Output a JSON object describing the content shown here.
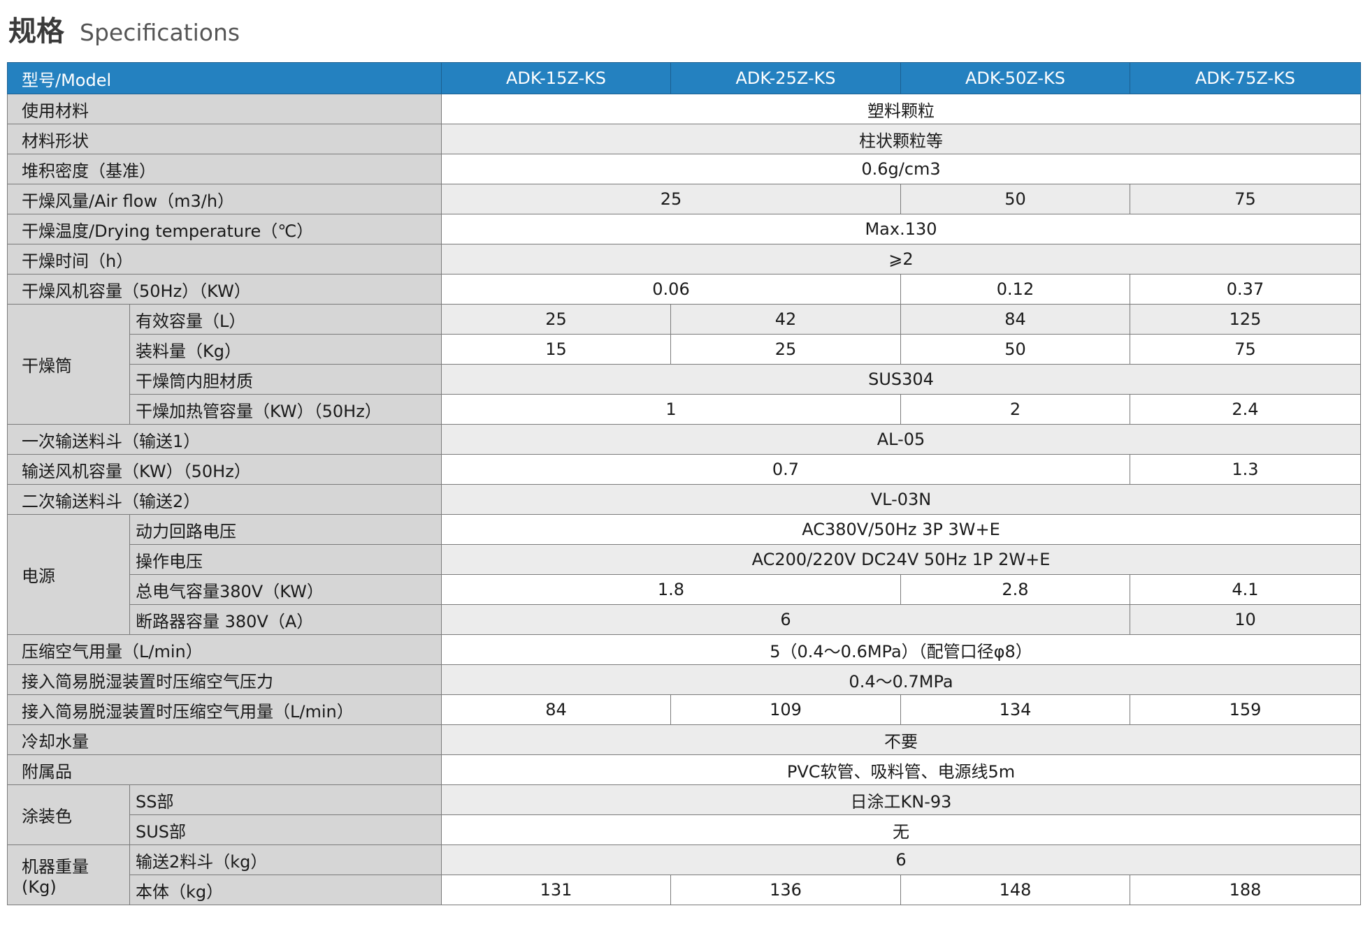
{
  "header": {
    "title_cn": "规格",
    "title_en": "Specifications"
  },
  "table": {
    "columns": [
      "型号/Model",
      "ADK-15Z-KS",
      "ADK-25Z-KS",
      "ADK-50Z-KS",
      "ADK-75Z-KS"
    ],
    "rows": [
      {
        "label": "使用材料",
        "cells": [
          "塑料颗粒",
          null,
          null,
          null
        ]
      },
      {
        "label": "材料形状",
        "cells": [
          "柱状颗粒等",
          null,
          null,
          null
        ]
      },
      {
        "label": "堆积密度（基准）",
        "cells": [
          "0.6g/cm3",
          null,
          null,
          null
        ]
      },
      {
        "label": "干燥风量/Air flow（m3/h）",
        "cells": [
          "25",
          null,
          "50",
          "75"
        ]
      },
      {
        "label": "干燥温度/Drying temperature（℃）",
        "cells": [
          "Max.130",
          null,
          null,
          null
        ]
      },
      {
        "label": "干燥时间（h）",
        "cells": [
          "⩾2",
          null,
          null,
          null
        ]
      },
      {
        "label": "干燥风机容量（50Hz）（KW）",
        "cells": [
          "0.06",
          null,
          "0.12",
          "0.37"
        ]
      },
      {
        "group": "干燥筒",
        "rows": [
          {
            "label": "有效容量（L）",
            "cells": [
              "25",
              "42",
              "84",
              "125"
            ]
          },
          {
            "label": "装料量（Kg）",
            "cells": [
              "15",
              "25",
              "50",
              "75"
            ]
          },
          {
            "label": "干燥筒内胆材质",
            "cells": [
              "SUS304",
              null,
              null,
              null
            ]
          },
          {
            "label": "干燥加热管容量（KW）（50Hz）",
            "cells": [
              "1",
              null,
              "2",
              "2.4"
            ]
          }
        ]
      },
      {
        "label": "一次输送料斗（输送1）",
        "cells": [
          "AL-05",
          null,
          null,
          null
        ]
      },
      {
        "label": "输送风机容量（KW）（50Hz）",
        "cells": [
          "0.7",
          null,
          null,
          "1.3"
        ]
      },
      {
        "label": "二次输送料斗（输送2）",
        "cells": [
          "VL-03N",
          null,
          null,
          null
        ]
      },
      {
        "group": "电源",
        "rows": [
          {
            "label": "动力回路电压",
            "cells": [
              "AC380V/50Hz 3P 3W+E",
              null,
              null,
              null
            ]
          },
          {
            "label": "操作电压",
            "cells": [
              "AC200/220V DC24V 50Hz 1P 2W+E",
              null,
              null,
              null
            ]
          },
          {
            "label": "总电气容量380V（KW）",
            "cells": [
              "1.8",
              null,
              "2.8",
              "4.1"
            ]
          },
          {
            "label": "断路器容量 380V（A）",
            "cells": [
              "6",
              null,
              null,
              "10"
            ]
          }
        ]
      },
      {
        "label": "压缩空气用量（L/min）",
        "cells": [
          "5（0.4～0.6MPa）（配管口径φ8）",
          null,
          null,
          null
        ]
      },
      {
        "label": "接入简易脱湿装置时压缩空气压力",
        "cells": [
          "0.4～0.7MPa",
          null,
          null,
          null
        ]
      },
      {
        "label": "接入简易脱湿装置时压缩空气用量（L/min）",
        "cells": [
          "84",
          "109",
          "134",
          "159"
        ]
      },
      {
        "label": "冷却水量",
        "cells": [
          "不要",
          null,
          null,
          null
        ]
      },
      {
        "label": "附属品",
        "cells": [
          "PVC软管、吸料管、电源线5m",
          null,
          null,
          null
        ]
      },
      {
        "group": "涂装色",
        "rows": [
          {
            "label": "SS部",
            "cells": [
              "日涂工KN-93",
              null,
              null,
              null
            ]
          },
          {
            "label": "SUS部",
            "cells": [
              "无",
              null,
              null,
              null
            ]
          }
        ]
      },
      {
        "group": "机器重量\n(Kg)",
        "rows": [
          {
            "label": "输送2料斗（kg）",
            "cells": [
              "6",
              null,
              null,
              null
            ]
          },
          {
            "label": "本体（kg）",
            "cells": [
              "131",
              "136",
              "148",
              "188"
            ]
          }
        ]
      }
    ]
  }
}
